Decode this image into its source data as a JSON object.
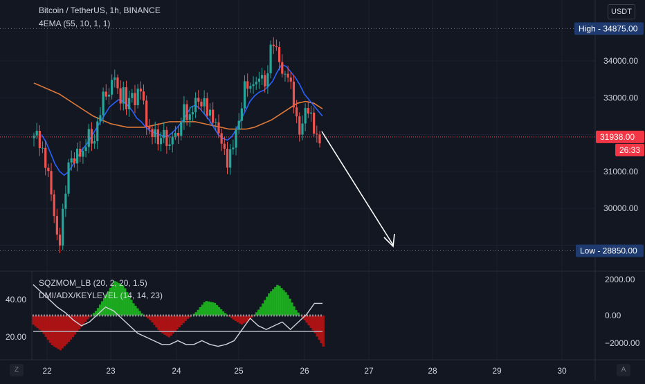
{
  "header": {
    "symbol_line": "Bitcoin / TetherUS, 1h, BINANCE",
    "ema_line": "4EMA (55, 10, 1, 1)",
    "currency": "USDT"
  },
  "indicators": {
    "sqz_label": "SQZMOM_LB (20, 2, 20, 1.5)",
    "dmi_label": "DMI/ADX/KEYLEVEL (14, 14, 23)"
  },
  "price_axis": {
    "ticks": [
      "34000.00",
      "33000.00",
      "31000.00",
      "30000.00"
    ],
    "high_label": "High - 34875.00",
    "low_label": "Low - 28850.00",
    "current_price": "31938.00",
    "countdown": "26:33"
  },
  "lower_axis": {
    "right_ticks": [
      "2000.00",
      "0.00",
      "−2000.00"
    ],
    "left_ticks": [
      "40.00",
      "20.00"
    ]
  },
  "time_axis": {
    "labels": [
      "22",
      "23",
      "24",
      "25",
      "26",
      "27",
      "28",
      "29",
      "30"
    ]
  },
  "buttons": {
    "left": "Z",
    "right": "A"
  },
  "colors": {
    "background": "#131722",
    "up": "#26a69a",
    "down": "#ef5350",
    "ema_fast": "#2962ff",
    "ema_slow": "#e07a3a",
    "momentum_pos": "#1ec01e",
    "momentum_neg": "#c21313",
    "adx": "#d1d4dc",
    "high_low_tag": "#1e3a6e",
    "price_tag": "#f23645"
  },
  "chart_data": {
    "type": "candlestick",
    "symbol": "Bitcoin / TetherUS",
    "interval": "1h",
    "exchange": "BINANCE",
    "y_range": [
      28300,
      35400
    ],
    "high": 34875,
    "low": 28850,
    "last_price": 31938,
    "x_labels": [
      "22",
      "23",
      "24",
      "25",
      "26",
      "27",
      "28",
      "29",
      "30"
    ],
    "price_path": [
      31900,
      32100,
      31700,
      31400,
      31000,
      30400,
      29500,
      28900,
      29900,
      30800,
      31500,
      31200,
      31700,
      31300,
      31800,
      32100,
      31600,
      32300,
      32700,
      33300,
      32900,
      33700,
      33400,
      32900,
      33200,
      32600,
      33300,
      32700,
      33500,
      32900,
      32300,
      31900,
      32200,
      31700,
      32100,
      31900,
      31600,
      32200,
      31800,
      32400,
      32800,
      32300,
      32700,
      33000,
      32800,
      32900,
      32600,
      32500,
      32300,
      32000,
      31700,
      31200,
      31500,
      31900,
      32300,
      32800,
      33600,
      33100,
      33500,
      33300,
      33800,
      33200,
      34000,
      34600,
      34300,
      33900,
      33500,
      33700,
      33200,
      32600,
      32000,
      32400,
      32800,
      32500,
      32100,
      31800
    ],
    "ema_fast": [
      32000,
      31800,
      31500,
      31200,
      31000,
      30900,
      31000,
      31200,
      31400,
      31600,
      31750,
      31950,
      32150,
      32350,
      32550,
      32750,
      32850,
      32950,
      32900,
      32800,
      32650,
      32450,
      32350,
      32200,
      32100,
      32050,
      32000,
      31950,
      31970,
      32070,
      32200,
      32350,
      32550,
      32750,
      32800,
      32700,
      32550,
      32400,
      32200,
      32000,
      31900,
      31850,
      31950,
      32150,
      32400,
      32650,
      32900,
      33050,
      33150,
      33200,
      33300,
      33450,
      33700,
      33900,
      33850,
      33700,
      33550,
      33350,
      33100,
      32950,
      32800,
      32650,
      32500
    ],
    "ema_slow": [
      33400,
      33300,
      33200,
      33100,
      32950,
      32800,
      32650,
      32500,
      32400,
      32300,
      32250,
      32200,
      32200,
      32200,
      32250,
      32300,
      32350,
      32350,
      32350,
      32350,
      32300,
      32250,
      32200,
      32150,
      32150,
      32150,
      32200,
      32300,
      32400,
      32550,
      32700,
      32850,
      32900,
      32850,
      32700
    ],
    "momentum_profile": [
      -0.5,
      -0.9,
      -1.6,
      -1.9,
      -1.4,
      -0.8,
      -0.2,
      0.3,
      1.1,
      1.9,
      1.6,
      0.7,
      0.1,
      -0.3,
      -0.9,
      -1.2,
      -0.7,
      -0.2,
      0.2,
      0.8,
      0.7,
      0.2,
      -0.2,
      -0.5,
      -0.2,
      0.4,
      1.2,
      1.7,
      1.2,
      0.3,
      -0.3,
      -0.9,
      -1.7
    ],
    "adx_profile": [
      48,
      44,
      40,
      36,
      33,
      29,
      26,
      28,
      32,
      36,
      34,
      30,
      26,
      22,
      20,
      18,
      16,
      16,
      18,
      16,
      16,
      18,
      16,
      15,
      16,
      18,
      24,
      30,
      26,
      24,
      26,
      28,
      24,
      28,
      32,
      38,
      38
    ]
  }
}
